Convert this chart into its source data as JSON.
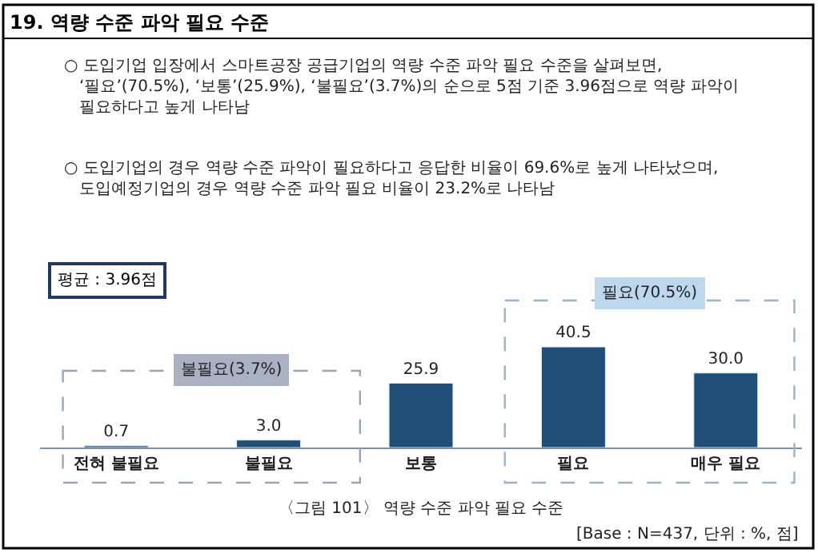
{
  "chart_data": {
    "type": "bar",
    "title": "19. 역량 수준 파악 필요 수준",
    "categories": [
      "전혀 불필요",
      "불필요",
      "보통",
      "필요",
      "매우 필요"
    ],
    "values": [
      0.7,
      3.0,
      25.9,
      40.5,
      30.0
    ],
    "color": "#1f4e79",
    "value_labels": [
      "0.7",
      "3.0",
      "25.9",
      "40.5",
      "30.0"
    ],
    "annotations": [
      "○ 도입기업 입장에서 스마트공장 공급기업의 역량 수준 파악 필요 수준을 살펴보면,\n   ‘필요’(70.5%), ‘보통’(25.9%), ‘불필요’(3.7%)의 순으로 5점 기준 3.96점으로 역량 파악이\n   필요하다고 높게 나타남",
      "○ 도입기업의 경우 역량 수준 파악이 필요하다고 응답한 비율이 69.6%로 높게 나타났으며,\n   도입예정기업의 경우 역량 수준 파악 필요 비율이 23.2%로 나타남",
      "평균 : 3.96점",
      "불필요(3.7%)",
      "필요(70.5%)",
      "〈그림 101〉 역량 수준 파악 필요 수준",
      "[Base : N=437, 단위 : %, 점]"
    ]
  }
}
